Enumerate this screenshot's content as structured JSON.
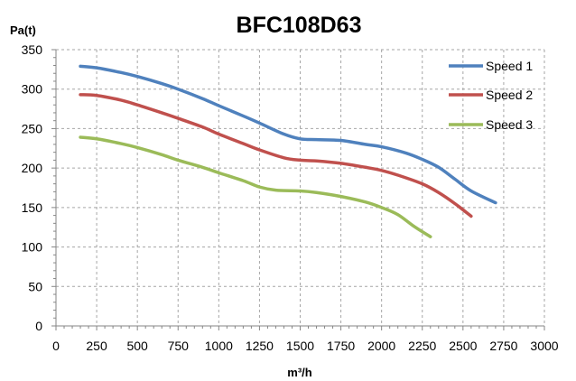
{
  "chart_data": {
    "type": "line",
    "title": "BFC108D63",
    "xlabel": "m³/h",
    "ylabel": "Pa(t)",
    "xlim": [
      0,
      3000
    ],
    "ylim": [
      0,
      350
    ],
    "x_ticks": [
      0,
      250,
      500,
      750,
      1000,
      1250,
      1500,
      1750,
      2000,
      2250,
      2500,
      2750,
      3000
    ],
    "y_ticks": [
      0,
      50,
      100,
      150,
      200,
      250,
      300,
      350
    ],
    "grid": true,
    "legend_position": "top-right",
    "series": [
      {
        "name": "Speed 1",
        "color": "#4f81bd",
        "points": [
          [
            150,
            329
          ],
          [
            250,
            327
          ],
          [
            400,
            321
          ],
          [
            500,
            316
          ],
          [
            650,
            307
          ],
          [
            750,
            300
          ],
          [
            900,
            288
          ],
          [
            1000,
            279
          ],
          [
            1150,
            266
          ],
          [
            1250,
            257
          ],
          [
            1400,
            243
          ],
          [
            1500,
            237
          ],
          [
            1600,
            236
          ],
          [
            1750,
            235
          ],
          [
            1900,
            230
          ],
          [
            2000,
            227
          ],
          [
            2150,
            219
          ],
          [
            2250,
            211
          ],
          [
            2350,
            201
          ],
          [
            2450,
            186
          ],
          [
            2550,
            171
          ],
          [
            2700,
            156
          ]
        ]
      },
      {
        "name": "Speed 2",
        "color": "#c0504d",
        "points": [
          [
            150,
            293
          ],
          [
            250,
            292
          ],
          [
            400,
            286
          ],
          [
            500,
            280
          ],
          [
            650,
            270
          ],
          [
            750,
            263
          ],
          [
            900,
            252
          ],
          [
            1000,
            243
          ],
          [
            1150,
            231
          ],
          [
            1250,
            223
          ],
          [
            1400,
            213
          ],
          [
            1500,
            210
          ],
          [
            1600,
            209
          ],
          [
            1750,
            206
          ],
          [
            1900,
            201
          ],
          [
            2000,
            197
          ],
          [
            2100,
            191
          ],
          [
            2250,
            180
          ],
          [
            2350,
            169
          ],
          [
            2450,
            155
          ],
          [
            2550,
            139
          ]
        ]
      },
      {
        "name": "Speed 3",
        "color": "#9bbb59",
        "points": [
          [
            150,
            239
          ],
          [
            250,
            237
          ],
          [
            400,
            231
          ],
          [
            500,
            226
          ],
          [
            650,
            217
          ],
          [
            750,
            210
          ],
          [
            900,
            201
          ],
          [
            1000,
            194
          ],
          [
            1150,
            184
          ],
          [
            1250,
            176
          ],
          [
            1350,
            172
          ],
          [
            1500,
            171
          ],
          [
            1600,
            169
          ],
          [
            1750,
            164
          ],
          [
            1900,
            157
          ],
          [
            2000,
            150
          ],
          [
            2100,
            141
          ],
          [
            2200,
            126
          ],
          [
            2300,
            113
          ]
        ]
      }
    ]
  }
}
